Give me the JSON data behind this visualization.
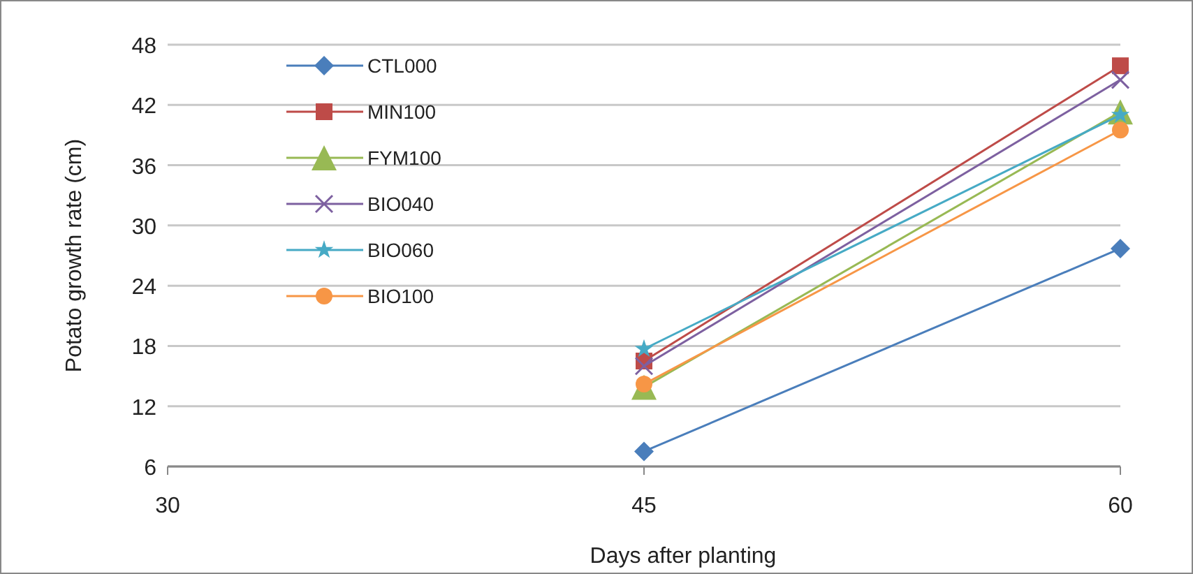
{
  "chart_data": {
    "type": "line",
    "xlabel": "Days after planting",
    "ylabel": "Potato growth rate (cm)",
    "x": [
      45,
      60
    ],
    "xlim": [
      30,
      60
    ],
    "xticks": [
      30,
      45,
      60
    ],
    "ylim": [
      6,
      48
    ],
    "yticks": [
      6,
      12,
      18,
      24,
      30,
      36,
      42,
      48
    ],
    "grid": "y",
    "legend": "top left",
    "line_style": "solid",
    "series": [
      {
        "name": "CTL000",
        "color": "#4a7ebb",
        "marker": "diamond",
        "values": [
          7.5,
          27.7
        ]
      },
      {
        "name": "MIN100",
        "color": "#be4b48",
        "marker": "square",
        "values": [
          16.5,
          45.9
        ]
      },
      {
        "name": "FYM100",
        "color": "#98b954",
        "marker": "triangle",
        "values": [
          13.9,
          41.3
        ]
      },
      {
        "name": "BIO040",
        "color": "#7d60a0",
        "marker": "cross",
        "values": [
          16,
          44.5
        ]
      },
      {
        "name": "BIO060",
        "color": "#46aac5",
        "marker": "star",
        "values": [
          17.7,
          41
        ]
      },
      {
        "name": "BIO100",
        "color": "#f79646",
        "marker": "circle",
        "values": [
          14.2,
          39.5
        ]
      }
    ]
  }
}
